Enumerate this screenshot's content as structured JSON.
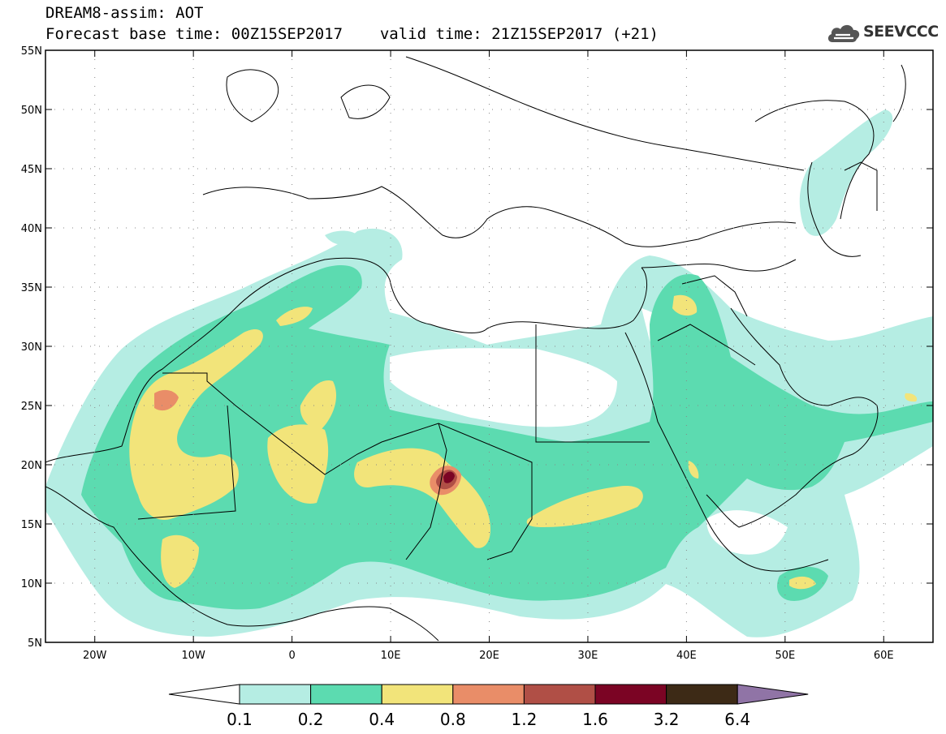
{
  "header": {
    "title": "DREAM8-assim: AOT",
    "base_time": "Forecast base time: 00Z15SEP2017",
    "valid_time": "valid time: 21Z15SEP2017 (+21)"
  },
  "logo": {
    "text": "SEEVCCC",
    "icon": "cloud-icon"
  },
  "map": {
    "lon_range": [
      -25,
      65
    ],
    "lat_range": [
      5,
      55
    ],
    "lat_labels": [
      "5N",
      "10N",
      "15N",
      "20N",
      "25N",
      "30N",
      "35N",
      "40N",
      "45N",
      "50N",
      "55N"
    ],
    "lon_labels": [
      "20W",
      "10W",
      "0",
      "10E",
      "20E",
      "30E",
      "40E",
      "50E",
      "60E"
    ],
    "grid": true
  },
  "colorbar": {
    "labels": [
      "0.1",
      "0.2",
      "0.4",
      "0.8",
      "1.2",
      "1.6",
      "3.2",
      "6.4"
    ],
    "colors": [
      "#b5ede3",
      "#5cdbb0",
      "#f2e47a",
      "#e98d68",
      "#b04f46",
      "#7b0424",
      "#3d2a16",
      "#9074a6"
    ],
    "under_color": "#ffffff"
  }
}
